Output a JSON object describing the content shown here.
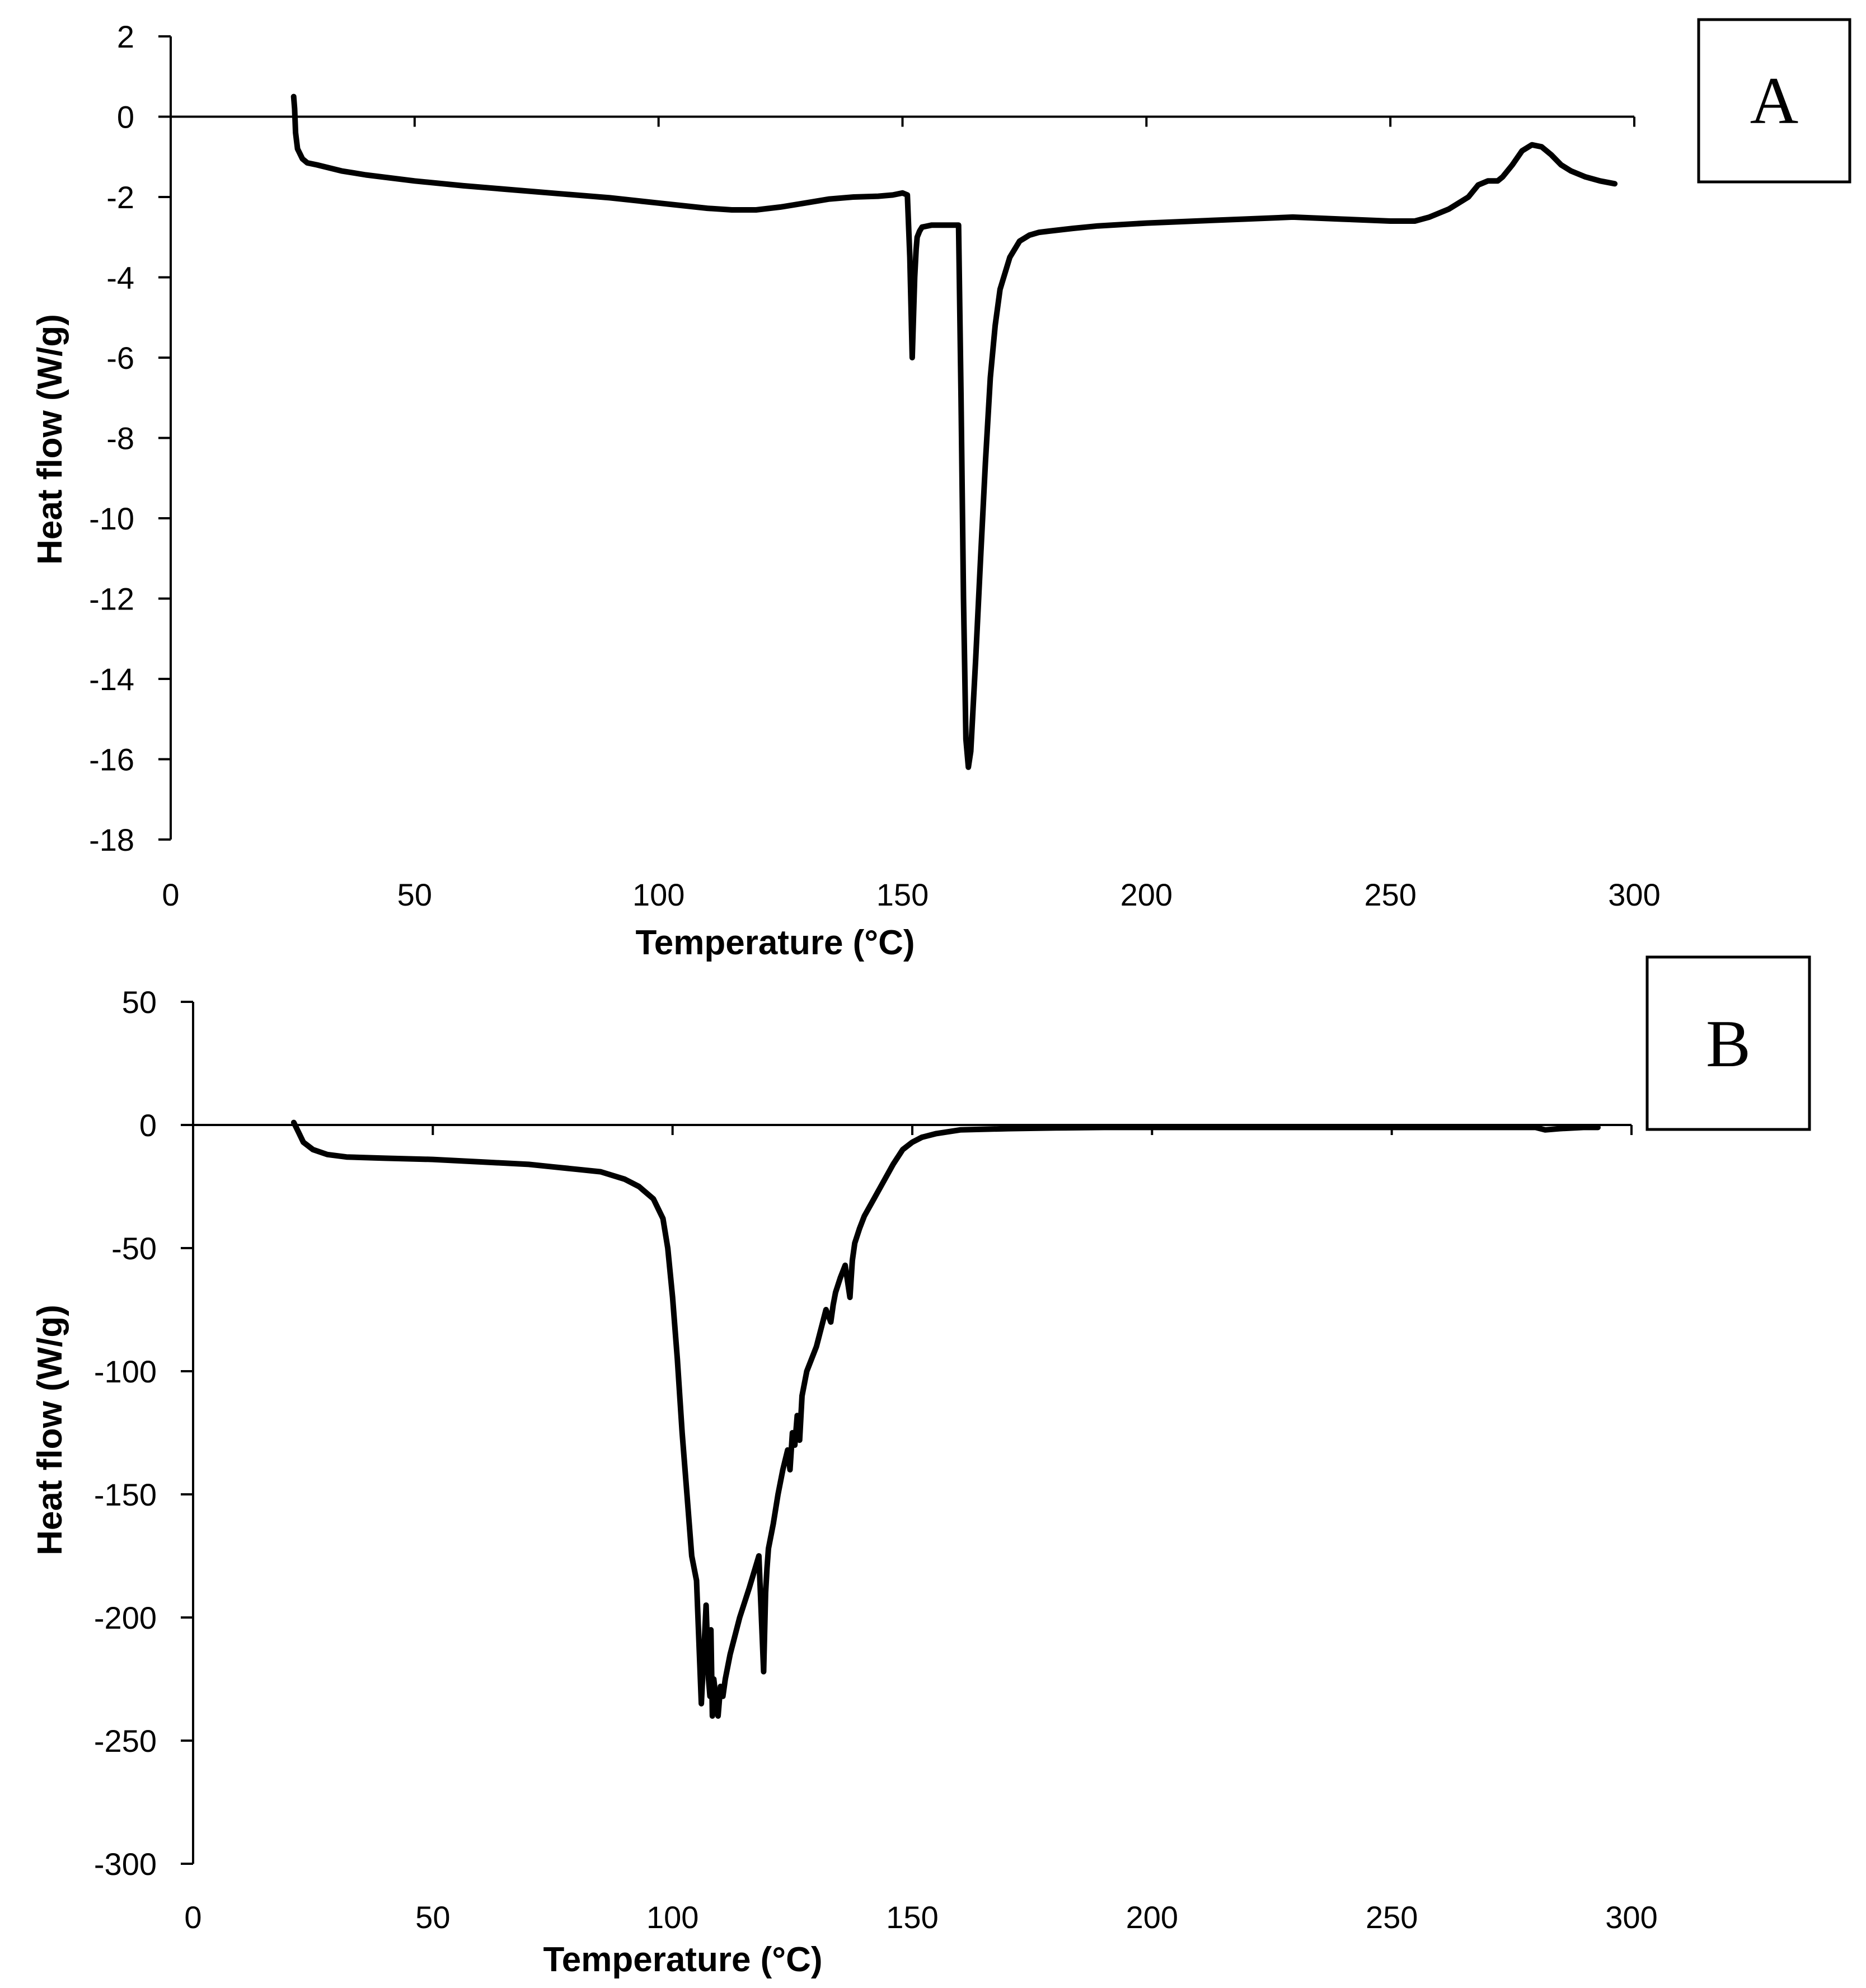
{
  "chart_data": [
    {
      "panel": "A",
      "type": "line",
      "xlabel": "Temperature (°C)",
      "ylabel": "Heat flow (W/g)",
      "xlim": [
        0,
        300
      ],
      "ylim": [
        -18,
        2
      ],
      "xticks": [
        0,
        50,
        100,
        150,
        200,
        250,
        300
      ],
      "yticks": [
        2,
        0,
        -2,
        -4,
        -6,
        -8,
        -10,
        -12,
        -14,
        -16,
        -18
      ],
      "series": [
        {
          "name": "A",
          "x": [
            25.2,
            25.4,
            25.6,
            26,
            27,
            28,
            30,
            35,
            40,
            50,
            60,
            70,
            80,
            90,
            100,
            110,
            115,
            120,
            125,
            130,
            135,
            140,
            145,
            148,
            150,
            151,
            151.5,
            152,
            152.5,
            152.8,
            153,
            153.5,
            154,
            156,
            158,
            160,
            161.5,
            162,
            162.5,
            163,
            163.5,
            164,
            165,
            166,
            167,
            168,
            169,
            170,
            172,
            174,
            176,
            178,
            180,
            185,
            190,
            200,
            210,
            220,
            230,
            240,
            250,
            255,
            258,
            262,
            266,
            268,
            270,
            272,
            273,
            275,
            277,
            279,
            281,
            283,
            285,
            287,
            290,
            293,
            296
          ],
          "y": [
            0.5,
            0.2,
            -0.4,
            -0.8,
            -1.05,
            -1.15,
            -1.2,
            -1.35,
            -1.45,
            -1.6,
            -1.72,
            -1.82,
            -1.92,
            -2.02,
            -2.15,
            -2.28,
            -2.32,
            -2.32,
            -2.25,
            -2.15,
            -2.05,
            -2.0,
            -1.98,
            -1.95,
            -1.9,
            -1.95,
            -3.5,
            -6.0,
            -4.0,
            -3.3,
            -3.0,
            -2.85,
            -2.75,
            -2.7,
            -2.7,
            -2.7,
            -2.7,
            -7.0,
            -12.0,
            -15.5,
            -16.2,
            -15.8,
            -13.5,
            -11.0,
            -8.6,
            -6.5,
            -5.2,
            -4.3,
            -3.5,
            -3.1,
            -2.95,
            -2.88,
            -2.85,
            -2.78,
            -2.72,
            -2.65,
            -2.6,
            -2.55,
            -2.5,
            -2.55,
            -2.6,
            -2.6,
            -2.5,
            -2.3,
            -2.0,
            -1.7,
            -1.6,
            -1.6,
            -1.5,
            -1.2,
            -0.85,
            -0.7,
            -0.75,
            -0.95,
            -1.2,
            -1.35,
            -1.5,
            -1.6,
            -1.67
          ]
        }
      ]
    },
    {
      "panel": "B",
      "type": "line",
      "xlabel": "Temperature (°C)",
      "ylabel": "Heat flow (W/g)",
      "xlim": [
        0,
        300
      ],
      "ylim": [
        -300,
        50
      ],
      "xticks": [
        0,
        50,
        100,
        150,
        200,
        250,
        300
      ],
      "yticks": [
        50,
        0,
        -50,
        -100,
        -150,
        -200,
        -250,
        -300
      ],
      "series": [
        {
          "name": "B",
          "x": [
            21,
            22,
            23,
            25,
            28,
            32,
            40,
            50,
            60,
            70,
            75,
            80,
            85,
            90,
            93,
            96,
            98,
            99,
            100,
            101,
            102,
            103,
            104,
            105,
            106,
            107,
            107.5,
            107.8,
            108,
            108.3,
            108.6,
            109,
            109.5,
            110,
            110.5,
            111,
            112,
            114,
            116,
            118,
            119,
            119.4,
            119.7,
            120,
            121,
            122,
            123,
            124,
            124.5,
            125,
            125.5,
            126,
            126.5,
            127,
            128,
            130,
            132,
            133,
            133.5,
            134,
            135,
            136,
            137,
            137.5,
            138,
            139,
            140,
            142,
            144,
            146,
            148,
            150,
            152,
            155,
            160,
            170,
            180,
            190,
            200,
            220,
            240,
            260,
            270,
            275,
            278,
            280,
            282,
            285,
            290,
            293
          ],
          "y": [
            1,
            -3,
            -7,
            -10,
            -12,
            -13,
            -13.5,
            -14,
            -15,
            -16,
            -17,
            -18,
            -19,
            -22,
            -25,
            -30,
            -38,
            -50,
            -70,
            -95,
            -125,
            -150,
            -175,
            -185,
            -235,
            -195,
            -225,
            -232,
            -205,
            -240,
            -225,
            -232,
            -240,
            -228,
            -232,
            -225,
            -215,
            -200,
            -188,
            -175,
            -222,
            -190,
            -180,
            -172,
            -162,
            -150,
            -140,
            -132,
            -140,
            -125,
            -130,
            -118,
            -128,
            -110,
            -100,
            -90,
            -75,
            -80,
            -73,
            -68,
            -62,
            -57,
            -70,
            -55,
            -48,
            -42,
            -37,
            -30,
            -23,
            -16,
            -10,
            -7,
            -5,
            -3.5,
            -2,
            -1.5,
            -1.2,
            -1,
            -1,
            -1,
            -1,
            -1,
            -1,
            -1,
            -1,
            -1,
            -2,
            -1.5,
            -1,
            -1
          ]
        }
      ]
    }
  ]
}
